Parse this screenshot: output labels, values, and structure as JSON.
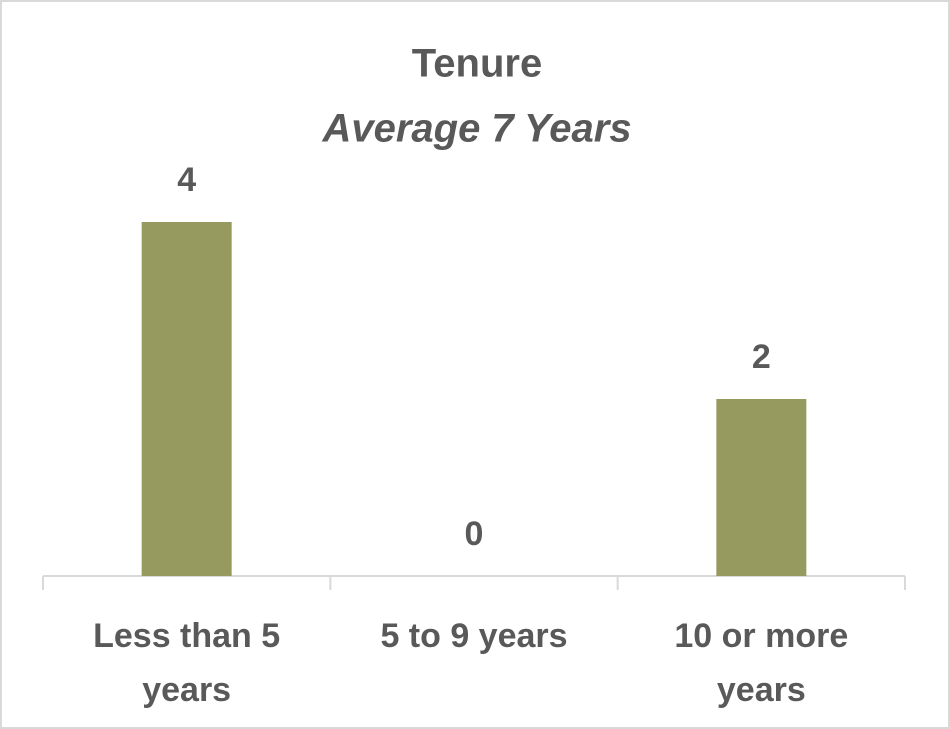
{
  "chart_data": {
    "type": "bar",
    "title": "Tenure",
    "subtitle": "Average 7 Years",
    "categories": [
      "Less than 5 years",
      "5 to 9 years",
      "10 or more years"
    ],
    "values": [
      4,
      0,
      2
    ],
    "color": "#969a5e"
  }
}
